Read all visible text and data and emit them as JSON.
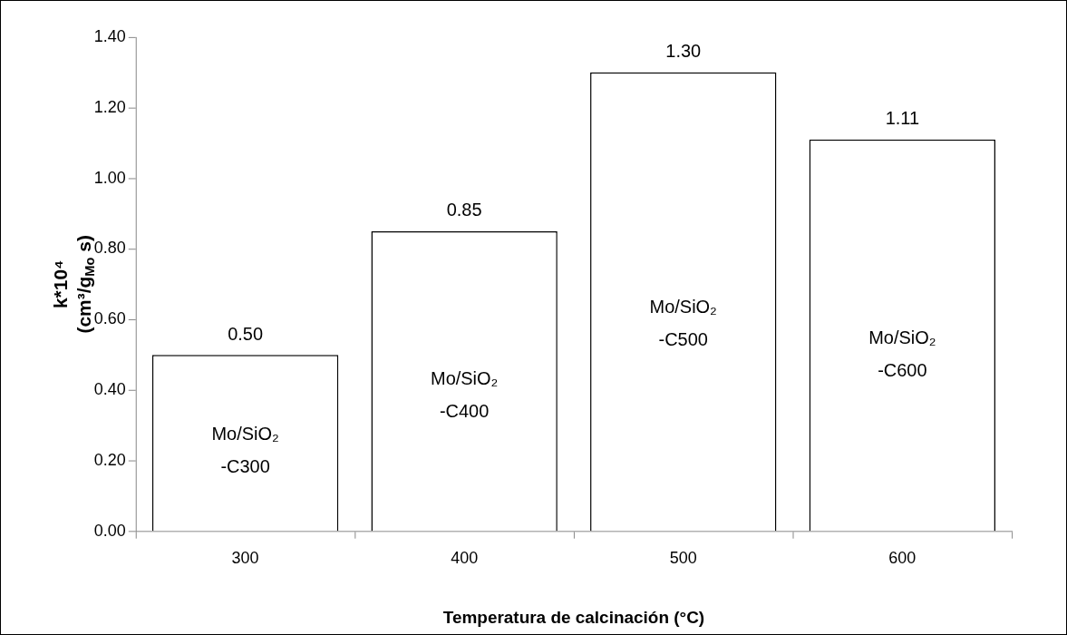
{
  "chart_data": {
    "type": "bar",
    "xlabel": "Temperatura de calcinación (°C)",
    "ylabel": "k*10⁴ (cm³/g$_{Mo}$ s)",
    "categories": [
      "300",
      "400",
      "500",
      "600"
    ],
    "values": [
      0.5,
      0.85,
      1.3,
      1.11
    ],
    "value_labels": [
      "0.50",
      "0.85",
      "1.30",
      "1.11"
    ],
    "color": "#ffffff",
    "ylim": [
      0,
      1.4
    ],
    "yticks": [
      {
        "value": 0,
        "label": "0.00"
      },
      {
        "value": 0.2,
        "label": "0.20"
      },
      {
        "value": 0.4,
        "label": "0.40"
      },
      {
        "value": 0.6,
        "label": "0.60"
      },
      {
        "value": 0.8,
        "label": "0.80"
      },
      {
        "value": 1.0,
        "label": "1.00"
      },
      {
        "value": 1.2,
        "label": "1.20"
      },
      {
        "value": 1.4,
        "label": "1.40"
      }
    ],
    "grid": false,
    "legend": false,
    "annotations": [
      "Mo/SiO₂ -C300",
      "Mo/SiO₂ -C400",
      "Mo/SiO₂ -C500",
      "Mo/SiO₂ -C600"
    ]
  }
}
